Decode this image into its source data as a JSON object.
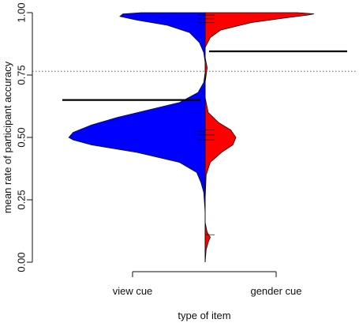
{
  "chart_data": {
    "type": "split-violin",
    "ylabel": "mean rate of participant accuracy",
    "xlabel": "type of item",
    "ylim": [
      0,
      1
    ],
    "yticks": [
      "0.00",
      "0.25",
      "0.50",
      "0.75",
      "1.00"
    ],
    "ytick_values": [
      0,
      0.25,
      0.5,
      0.75,
      1.0
    ],
    "categories": [
      "view cue",
      "gender cue"
    ],
    "reference_line": {
      "y": 0.765,
      "style": "dotted"
    },
    "series": [
      {
        "name": "view cue",
        "side": "left",
        "color": "#0000ff",
        "mean": 0.65,
        "density_profile": [
          [
            0.0,
            0.0
          ],
          [
            0.06,
            0.0
          ],
          [
            0.1,
            0.0
          ],
          [
            0.2,
            0.0
          ],
          [
            0.28,
            0.01
          ],
          [
            0.32,
            0.03
          ],
          [
            0.36,
            0.06
          ],
          [
            0.4,
            0.18
          ],
          [
            0.44,
            0.48
          ],
          [
            0.47,
            0.8
          ],
          [
            0.49,
            0.93
          ],
          [
            0.5,
            0.96
          ],
          [
            0.52,
            0.93
          ],
          [
            0.55,
            0.8
          ],
          [
            0.58,
            0.62
          ],
          [
            0.61,
            0.4
          ],
          [
            0.64,
            0.18
          ],
          [
            0.68,
            0.05
          ],
          [
            0.72,
            0.01
          ],
          [
            0.76,
            0.0
          ],
          [
            0.8,
            0.0
          ],
          [
            0.84,
            0.01
          ],
          [
            0.88,
            0.04
          ],
          [
            0.92,
            0.11
          ],
          [
            0.95,
            0.27
          ],
          [
            0.97,
            0.48
          ],
          [
            0.985,
            0.6
          ],
          [
            0.995,
            0.58
          ],
          [
            1.0,
            0.45
          ]
        ],
        "data_ticks": [
          0.51,
          0.49,
          0.525,
          0.96,
          0.975,
          0.99
        ]
      },
      {
        "name": "gender cue",
        "side": "right",
        "color": "#ff0000",
        "mean": 0.845,
        "density_profile": [
          [
            0.0,
            0.0
          ],
          [
            0.05,
            0.01
          ],
          [
            0.08,
            0.03
          ],
          [
            0.1,
            0.05
          ],
          [
            0.12,
            0.02
          ],
          [
            0.16,
            0.0
          ],
          [
            0.25,
            0.0
          ],
          [
            0.35,
            0.01
          ],
          [
            0.4,
            0.05
          ],
          [
            0.44,
            0.16
          ],
          [
            0.47,
            0.27
          ],
          [
            0.5,
            0.3
          ],
          [
            0.53,
            0.25
          ],
          [
            0.56,
            0.13
          ],
          [
            0.6,
            0.03
          ],
          [
            0.66,
            0.0
          ],
          [
            0.72,
            0.0
          ],
          [
            0.78,
            0.02
          ],
          [
            0.82,
            0.0
          ],
          [
            0.86,
            0.0
          ],
          [
            0.9,
            0.05
          ],
          [
            0.93,
            0.15
          ],
          [
            0.96,
            0.45
          ],
          [
            0.98,
            0.8
          ],
          [
            0.99,
            1.0
          ],
          [
            0.995,
            1.06
          ],
          [
            1.0,
            0.9
          ]
        ],
        "data_ticks": [
          0.11,
          0.49,
          0.51,
          0.53,
          0.96,
          0.975,
          0.99
        ]
      }
    ]
  },
  "colors": {
    "view": "#0000ff",
    "gender": "#ff0000",
    "axis": "#111111",
    "mean_line": "#000000",
    "reference": "#666666"
  }
}
